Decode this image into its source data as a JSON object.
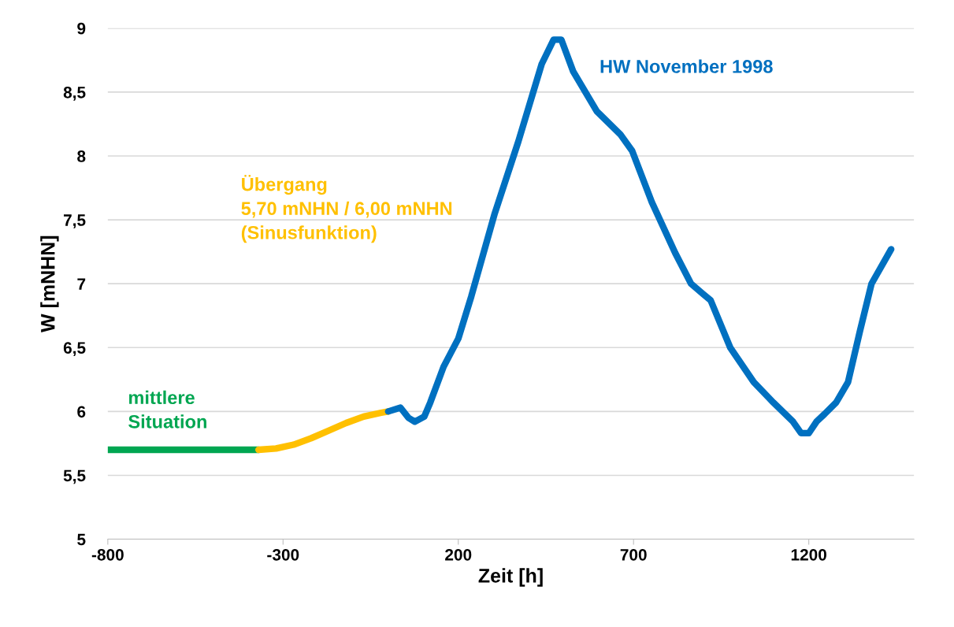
{
  "chart_data": {
    "type": "line",
    "xlabel": "Zeit [h]",
    "ylabel": "W [mNHN]",
    "xlim": [
      -800,
      1500
    ],
    "xticks": [
      -800,
      -300,
      200,
      700,
      1200
    ],
    "ylim": [
      5,
      9
    ],
    "yticks": [
      5,
      {
        "value": 5.5,
        "label": "5,5"
      },
      6,
      {
        "value": 6.5,
        "label": "6,5"
      },
      7,
      {
        "value": 7.5,
        "label": "7,5"
      },
      8,
      {
        "value": 8.5,
        "label": "8,5"
      },
      9
    ],
    "grid": "y",
    "legend": false,
    "series": [
      {
        "name": "mittlere\nSituation",
        "color": "#00a651",
        "x": [
          -800,
          -370
        ],
        "values": [
          5.7,
          5.7
        ]
      },
      {
        "name": "Übergang\n5,70 mNHN / 6,00 mNHN\n(Sinusfunktion)",
        "color": "#ffc000",
        "x": [
          -370,
          -320,
          -270,
          -220,
          -170,
          -120,
          -70,
          -20,
          0
        ],
        "values": [
          5.7,
          5.71,
          5.74,
          5.79,
          5.85,
          5.91,
          5.96,
          5.99,
          6.0
        ]
      },
      {
        "name": "HW November 1998",
        "color": "#0070c0",
        "x": [
          0,
          35,
          58,
          76,
          103,
          120,
          158,
          200,
          237,
          304,
          371,
          438,
          472,
          494,
          528,
          595,
          662,
          696,
          752,
          819,
          864,
          898,
          920,
          976,
          1043,
          1099,
          1155,
          1178,
          1200,
          1222,
          1245,
          1278,
          1312,
          1346,
          1379,
          1435
        ],
        "values": [
          6.0,
          6.03,
          5.95,
          5.92,
          5.96,
          6.07,
          6.35,
          6.57,
          6.9,
          7.55,
          8.11,
          8.72,
          8.91,
          8.91,
          8.66,
          8.35,
          8.17,
          8.04,
          7.64,
          7.24,
          7.0,
          6.92,
          6.87,
          6.5,
          6.23,
          6.07,
          5.92,
          5.83,
          5.83,
          5.92,
          5.98,
          6.07,
          6.23,
          6.63,
          7.0,
          7.27
        ]
      }
    ]
  }
}
